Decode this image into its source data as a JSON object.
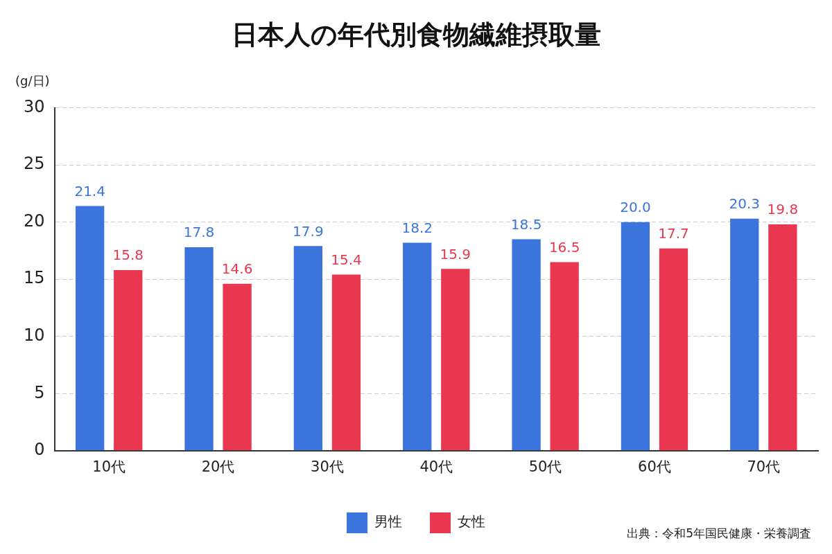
{
  "chart_data": {
    "type": "bar",
    "title": "日本人の年代別食物繊維摂取量",
    "ylabel": "(g/日)",
    "categories": [
      "10代",
      "20代",
      "30代",
      "40代",
      "50代",
      "60代",
      "70代"
    ],
    "series": [
      {
        "name": "男性",
        "color": "#3b74dc",
        "values": [
          21.4,
          17.8,
          17.9,
          18.2,
          18.5,
          20.0,
          20.3
        ],
        "value_labels": [
          "21.4",
          "17.8",
          "17.9",
          "18.2",
          "18.5",
          "20.0",
          "20.3"
        ]
      },
      {
        "name": "女性",
        "color": "#e8374f",
        "values": [
          15.8,
          14.6,
          15.4,
          15.9,
          16.5,
          17.7,
          19.8
        ],
        "value_labels": [
          "15.8",
          "14.6",
          "15.4",
          "15.9",
          "16.5",
          "17.7",
          "19.8"
        ]
      }
    ],
    "ylim": [
      0,
      30
    ],
    "yticks": [
      0,
      5,
      10,
      15,
      20,
      25,
      30
    ],
    "grid": "y",
    "legend": "bottom",
    "annotations": [
      "出典：令和5年国民健康・栄養調査"
    ]
  }
}
